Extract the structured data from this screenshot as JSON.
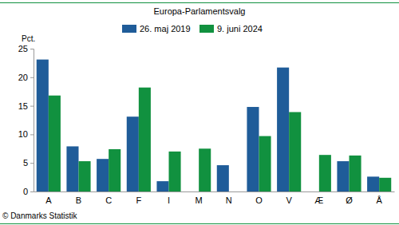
{
  "chart_data": {
    "type": "bar",
    "title": "Europa-Parlamentsvalg",
    "ylabel": "Pct.",
    "source": "© Danmarks Statistik",
    "categories": [
      "A",
      "B",
      "C",
      "F",
      "I",
      "M",
      "N",
      "O",
      "V",
      "Æ",
      "Ø",
      "Å"
    ],
    "series": [
      {
        "name": "26. maj 2019",
        "color": "#1f5c99",
        "values": [
          23.1,
          7.9,
          5.7,
          13.1,
          1.8,
          null,
          4.6,
          14.8,
          21.7,
          null,
          5.3,
          2.6
        ]
      },
      {
        "name": "9. juni 2024",
        "color": "#11913f",
        "values": [
          16.8,
          5.3,
          7.4,
          18.2,
          7.0,
          7.5,
          null,
          9.7,
          13.9,
          6.4,
          6.3,
          2.4
        ]
      }
    ],
    "ylim": [
      0,
      25
    ],
    "yticks": [
      0,
      5,
      10,
      15,
      20,
      25
    ],
    "grid": false,
    "legend": "top"
  }
}
